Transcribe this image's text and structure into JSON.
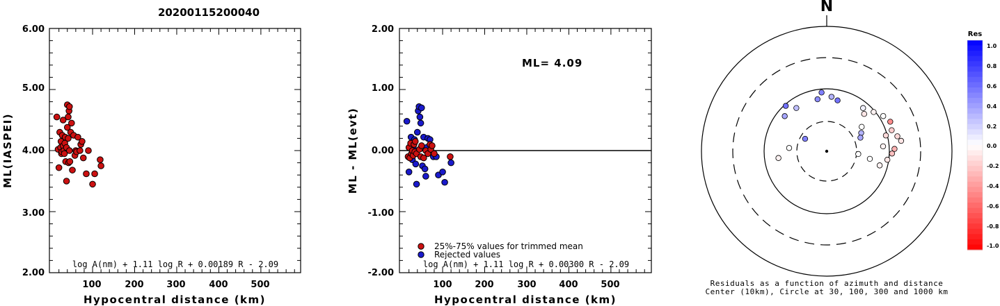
{
  "title": "20200115200040",
  "left_plot": {
    "ylabel": "ML(IASPEI)",
    "xlabel": "Hypocentral distance (km)",
    "formula": "log A(nm) + 1.11 log R + 0.00189 R - 2.09",
    "y_ticks": [
      "6.00",
      "5.00",
      "4.00",
      "3.00",
      "2.00"
    ],
    "x_ticks": [
      "100",
      "200",
      "300",
      "400",
      "500"
    ]
  },
  "middle_plot": {
    "ylabel": "ML - ML(evt)",
    "xlabel": "Hypocentral distance (km)",
    "ml_text": "ML= 4.09",
    "legend_trimmed": "25%-75% values for trimmed mean",
    "legend_rejected": "Rejected values",
    "formula": "log A(nm) + 1.11 log R + 0.00300 R - 2.09",
    "y_ticks": [
      "2.00",
      "1.00",
      "0.00",
      "-1.00",
      "-2.00"
    ],
    "x_ticks": [
      "100",
      "200",
      "300",
      "400",
      "500"
    ]
  },
  "polar_plot": {
    "north_label": "N",
    "caption_line1": "Residuals as a function of azimuth and distance",
    "caption_line2": "Center (10km), Circle at 30, 100, 300 and 1000 km"
  },
  "colorbar": {
    "label": "Res",
    "ticks": [
      "1.0",
      "0.8",
      "0.6",
      "0.4",
      "0.2",
      "0.0",
      "-0.2",
      "-0.4",
      "-0.6",
      "-0.8",
      "-1.0"
    ]
  },
  "colors": {
    "trimmed": "#cc1111",
    "rejected": "#1a1acc",
    "axis": "#000000"
  },
  "chart_data": [
    {
      "type": "scatter",
      "title": "20200115200040",
      "xlabel": "Hypocentral distance (km)",
      "ylabel": "ML(IASPEI)",
      "xlim": [
        0,
        600
      ],
      "ylim": [
        2.0,
        6.0
      ],
      "series": [
        {
          "x": [
            15,
            18,
            20,
            22,
            24,
            25,
            26,
            27,
            28,
            30,
            30,
            32,
            33,
            34,
            35,
            36,
            38,
            38,
            40,
            40,
            42,
            42,
            43,
            44,
            45,
            45,
            46,
            48,
            50,
            52,
            55,
            58,
            60,
            62,
            65,
            70,
            72,
            75,
            78,
            85,
            90,
            100,
            105,
            118,
            120
          ],
          "y": [
            4.55,
            4.02,
            3.72,
            4.3,
            4.05,
            4.15,
            3.95,
            3.98,
            4.25,
            4.08,
            4.5,
            4.0,
            3.95,
            4.12,
            4.22,
            3.82,
            3.5,
            4.05,
            4.38,
            4.75,
            4.2,
            4.55,
            3.8,
            4.65,
            4.72,
            4.0,
            3.82,
            4.3,
            4.45,
            3.68,
            4.25,
            3.92,
            4.0,
            3.98,
            4.22,
            4.0,
            4.1,
            4.15,
            3.88,
            3.62,
            4.0,
            3.45,
            3.62,
            3.85,
            3.75
          ]
        }
      ]
    },
    {
      "type": "scatter",
      "xlabel": "Hypocentral distance (km)",
      "ylabel": "ML - ML(evt)",
      "xlim": [
        0,
        600
      ],
      "ylim": [
        -2.0,
        2.0
      ],
      "reference_line_y": 0.0,
      "series": [
        {
          "name": "25%-75% values for trimmed mean",
          "color": "#cc1111",
          "x": [
            18,
            20,
            22,
            24,
            26,
            28,
            30,
            32,
            34,
            35,
            38,
            45,
            48,
            50,
            55,
            60,
            65,
            70,
            72,
            75,
            80,
            118
          ],
          "y": [
            -0.1,
            0.05,
            -0.12,
            0.12,
            -0.05,
            0.0,
            -0.08,
            0.1,
            -0.02,
            0.15,
            -0.05,
            0.02,
            -0.1,
            0.08,
            -0.12,
            0.0,
            -0.05,
            0.1,
            0.02,
            0.08,
            -0.05,
            -0.1
          ]
        },
        {
          "name": "Rejected values",
          "color": "#1a1acc",
          "x": [
            15,
            20,
            25,
            28,
            30,
            33,
            36,
            38,
            40,
            42,
            44,
            46,
            48,
            50,
            52,
            55,
            58,
            60,
            62,
            65,
            70,
            78,
            85,
            90,
            100,
            105,
            120
          ],
          "y": [
            0.48,
            -0.35,
            0.22,
            -0.15,
            0.05,
            0.18,
            -0.22,
            -0.55,
            0.3,
            0.65,
            0.72,
            0.55,
            0.45,
            0.7,
            -0.25,
            0.22,
            -0.3,
            -0.42,
            0.05,
            0.2,
            0.18,
            -0.1,
            -0.1,
            -0.4,
            -0.35,
            -0.52,
            -0.2
          ]
        }
      ]
    },
    {
      "type": "scatter",
      "title": "Residuals as a function of azimuth and distance",
      "coordinate_system": "polar",
      "rings_km": [
        30,
        100,
        300,
        1000
      ],
      "points": [
        {
          "az": 55,
          "dist": 48,
          "res": 0.0
        },
        {
          "az": 62,
          "dist": 42,
          "res": 0.3
        },
        {
          "az": 68,
          "dist": 38,
          "res": 0.35
        },
        {
          "az": 45,
          "dist": 70,
          "res": -0.1
        },
        {
          "az": 40,
          "dist": 80,
          "res": 0.05
        },
        {
          "az": 50,
          "dist": 95,
          "res": -0.05
        },
        {
          "az": 58,
          "dist": 115,
          "res": 0.0
        },
        {
          "az": 65,
          "dist": 130,
          "res": -0.45
        },
        {
          "az": 72,
          "dist": 122,
          "res": -0.2
        },
        {
          "az": 78,
          "dist": 140,
          "res": -0.15
        },
        {
          "az": 82,
          "dist": 155,
          "res": -0.1
        },
        {
          "az": 88,
          "dist": 120,
          "res": -0.3
        },
        {
          "az": 92,
          "dist": 110,
          "res": -0.25
        },
        {
          "az": 98,
          "dist": 95,
          "res": -0.1
        },
        {
          "az": 105,
          "dist": 75,
          "res": -0.05
        },
        {
          "az": 75,
          "dist": 95,
          "res": -0.15
        },
        {
          "az": 85,
          "dist": 80,
          "res": -0.05
        },
        {
          "az": 100,
          "dist": 50,
          "res": 0.0
        },
        {
          "az": 95,
          "dist": 32,
          "res": 0.0
        },
        {
          "az": 300,
          "dist": 25,
          "res": 0.5
        },
        {
          "az": 275,
          "dist": 40,
          "res": 0.0
        },
        {
          "az": 262,
          "dist": 60,
          "res": -0.05
        },
        {
          "az": 310,
          "dist": 75,
          "res": 0.35
        },
        {
          "az": 318,
          "dist": 95,
          "res": 0.55
        },
        {
          "az": 325,
          "dist": 70,
          "res": 0.25
        },
        {
          "az": 350,
          "dist": 70,
          "res": 0.45
        },
        {
          "az": 355,
          "dist": 88,
          "res": 0.5
        },
        {
          "az": 5,
          "dist": 75,
          "res": 0.3
        },
        {
          "az": 12,
          "dist": 68,
          "res": 0.55
        }
      ]
    }
  ]
}
